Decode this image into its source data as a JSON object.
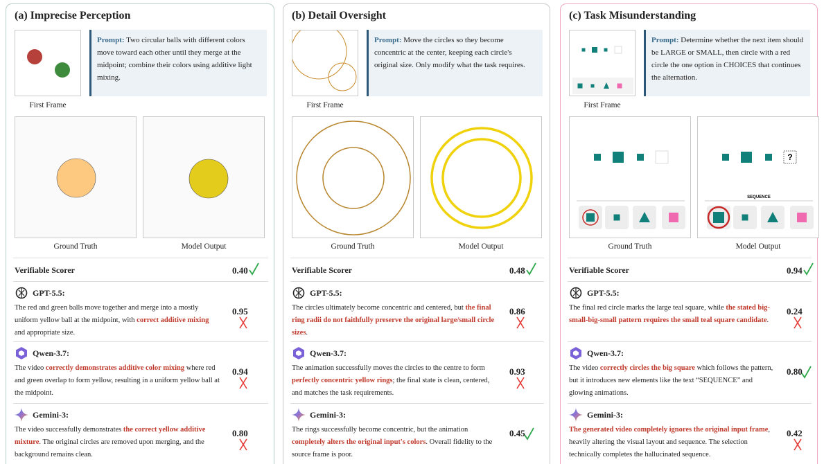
{
  "panels": [
    {
      "title": "(a) Imprecise Perception",
      "prompt_label": "Prompt:",
      "prompt": "Two circular balls with different colors move toward each other until they merge at the midpoint; combine their colors using additive light mixing.",
      "first_frame_label": "First Frame",
      "ground_truth_label": "Ground Truth",
      "output_label": "Model Output",
      "verifiable": {
        "label": "Verifiable Scorer",
        "score": "0.40",
        "verdict": "check"
      },
      "reviews": [
        {
          "model": "GPT-5.5:",
          "score": "0.95",
          "verdict": "cross",
          "segments": [
            {
              "text": "The red and green balls move together and merge into a mostly uniform yellow ball at the midpoint, with ",
              "em": false
            },
            {
              "text": "correct additive mixing",
              "em": true
            },
            {
              "text": " and appropriate size.",
              "em": false
            }
          ]
        },
        {
          "model": "Qwen-3.7:",
          "score": "0.94",
          "verdict": "cross",
          "segments": [
            {
              "text": "The video ",
              "em": false
            },
            {
              "text": "correctly demonstrates additive color mixing",
              "em": true
            },
            {
              "text": " where red and green overlap to form yellow, resulting in a uniform yellow ball at the midpoint.",
              "em": false
            }
          ]
        },
        {
          "model": "Gemini-3:",
          "score": "0.80",
          "verdict": "cross",
          "segments": [
            {
              "text": "The video successfully demonstrates ",
              "em": false
            },
            {
              "text": "the correct yellow additive mixture",
              "em": true
            },
            {
              "text": ". The original circles are removed upon merging, and the background remains clean.",
              "em": false
            }
          ]
        }
      ]
    },
    {
      "title": "(b) Detail Oversight",
      "prompt_label": "Prompt:",
      "prompt": "Move the circles so they become concentric at the center, keeping each circle's original size. Only modify what the task requires.",
      "first_frame_label": "First Frame",
      "ground_truth_label": "Ground Truth",
      "output_label": "Model Output",
      "verifiable": {
        "label": "Verifiable Scorer",
        "score": "0.48",
        "verdict": "check"
      },
      "reviews": [
        {
          "model": "GPT-5.5:",
          "score": "0.86",
          "verdict": "cross",
          "segments": [
            {
              "text": "The circles ultimately become concentric and centered, but ",
              "em": false
            },
            {
              "text": "the final ring radii do not faithfully preserve the original large/small circle sizes",
              "em": true
            },
            {
              "text": ".",
              "em": false
            }
          ]
        },
        {
          "model": "Qwen-3.7:",
          "score": "0.93",
          "verdict": "cross",
          "segments": [
            {
              "text": "The animation successfully moves the circles to the centre to form ",
              "em": false
            },
            {
              "text": "perfectly concentric yellow rings",
              "em": true
            },
            {
              "text": "; the final state is clean, centered, and matches the task requirements.",
              "em": false
            }
          ]
        },
        {
          "model": "Gemini-3:",
          "score": "0.45",
          "verdict": "check",
          "segments": [
            {
              "text": "The rings successfully become concentric, but the animation ",
              "em": false
            },
            {
              "text": "completely alters the original input's colors",
              "em": true
            },
            {
              "text": ". Overall fidelity to the source frame is poor.",
              "em": false
            }
          ]
        }
      ]
    },
    {
      "title": "(c) Task Misunderstanding",
      "prompt_label": "Prompt:",
      "prompt": "Determine whether the next item should be LARGE or SMALL, then circle with a red circle the one option in CHOICES that continues the alternation.",
      "first_frame_label": "First Frame",
      "ground_truth_label": "Ground Truth",
      "output_label": "Model Output",
      "image_texts": {
        "question": "?",
        "sequence": "SEQUENCE"
      },
      "verifiable": {
        "label": "Verifiable Scorer",
        "score": "0.94",
        "verdict": "check"
      },
      "reviews": [
        {
          "model": "GPT-5.5:",
          "score": "0.24",
          "verdict": "cross",
          "segments": [
            {
              "text": "The final red circle marks the large teal square, while ",
              "em": false
            },
            {
              "text": "the stated big-small-big-small pattern requires the small teal square candidate",
              "em": true
            },
            {
              "text": ".",
              "em": false
            }
          ]
        },
        {
          "model": "Qwen-3.7:",
          "score": "0.80",
          "verdict": "check",
          "segments": [
            {
              "text": "The video ",
              "em": false
            },
            {
              "text": "correctly circles the big square",
              "em": true
            },
            {
              "text": " which follows the pattern, but it introduces new elements like the text “SEQUENCE” and glowing animations.",
              "em": false
            }
          ]
        },
        {
          "model": "Gemini-3:",
          "score": "0.42",
          "verdict": "cross",
          "segments": [
            {
              "text": "The generated video completely ignores the original input frame",
              "em": true
            },
            {
              "text": ", heavily altering the visual layout and sequence. The selection technically completes the hallucinated sequence.",
              "em": false
            }
          ]
        }
      ]
    }
  ]
}
